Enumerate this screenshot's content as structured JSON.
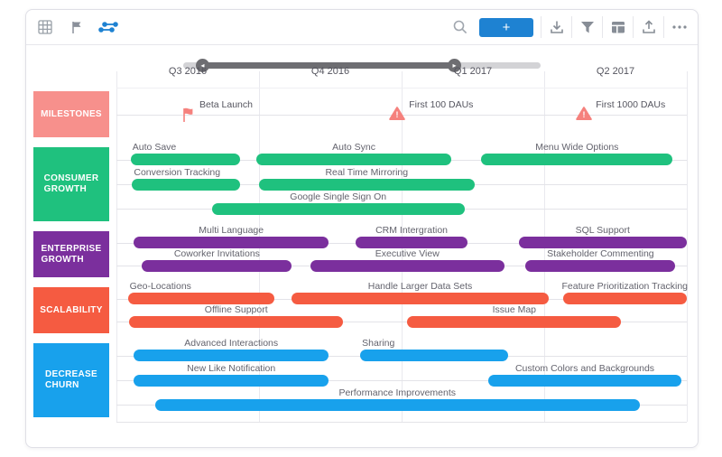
{
  "toolbar": {
    "left_icons": [
      {
        "name": "table-view-icon",
        "active": false
      },
      {
        "name": "milestones-flag-icon",
        "active": false
      },
      {
        "name": "swimlane-view-icon",
        "active": true
      }
    ],
    "search_icon": "search-icon",
    "add_button_label": "+",
    "right_icons": [
      "download-icon",
      "filter-icon",
      "layout-board-icon",
      "upload-icon",
      "more-ellipsis-icon"
    ]
  },
  "colors": {
    "accent_blue": "#1E82D2",
    "icon_gray": "#8A909A",
    "slider_gray": "#6E6E72",
    "milestone_salmon": "#F5817D",
    "lane_milestones": "#F7908C",
    "lane_consumer": "#1FC17E",
    "lane_enterprise": "#7B2F9D",
    "lane_scalability": "#F55B41",
    "lane_churn": "#18A1EC"
  },
  "slider": {
    "left_handle_glyph": "◂",
    "right_handle_glyph": "▸"
  },
  "timeline": {
    "quarters": [
      "Q3 2016",
      "Q4 2016",
      "Q1 2017",
      "Q2 2017"
    ],
    "range_quarters": 4
  },
  "lanes": [
    {
      "id": "milestones",
      "label": "MILESTONES",
      "color": "#F7908C",
      "type": "milestones",
      "milestones": [
        {
          "label": "Beta Launch",
          "t": 0.5,
          "icon": "flag-milestone-icon"
        },
        {
          "label": "First 100 DAUs",
          "t": 1.97,
          "icon": "warning-milestone-icon"
        },
        {
          "label": "First 1000 DAUs",
          "t": 3.28,
          "icon": "warning-milestone-icon"
        }
      ]
    },
    {
      "id": "consumer-growth",
      "label": "CONSUMER\nGROWTH",
      "color": "#1FC17E",
      "type": "bars",
      "rows": [
        [
          {
            "label": "Auto Save",
            "start": 0.1,
            "end": 0.87,
            "align": "left"
          },
          {
            "label": "Auto Sync",
            "start": 0.98,
            "end": 2.35,
            "align": "center"
          },
          {
            "label": "Menu Wide Options",
            "start": 2.56,
            "end": 3.9,
            "align": "center"
          }
        ],
        [
          {
            "label": "Conversion Tracking",
            "start": 0.11,
            "end": 0.87,
            "align": "left"
          },
          {
            "label": "Real Time Mirroring",
            "start": 1.0,
            "end": 2.51,
            "align": "center"
          }
        ],
        [
          {
            "label": "Google Single Sign On",
            "start": 0.67,
            "end": 2.44,
            "align": "center"
          }
        ]
      ]
    },
    {
      "id": "enterprise-growth",
      "label": "ENTERPRISE\nGROWTH",
      "color": "#7B2F9D",
      "type": "bars",
      "rows": [
        [
          {
            "label": "Multi Language",
            "start": 0.12,
            "end": 1.49,
            "align": "center"
          },
          {
            "label": "CRM Intergration",
            "start": 1.68,
            "end": 2.46,
            "align": "center"
          },
          {
            "label": "SQL Support",
            "start": 2.82,
            "end": 4.0,
            "align": "center"
          }
        ],
        [
          {
            "label": "Coworker Invitations",
            "start": 0.18,
            "end": 1.23,
            "align": "center"
          },
          {
            "label": "Executive View",
            "start": 1.36,
            "end": 2.72,
            "align": "center"
          },
          {
            "label": "Stakeholder Commenting",
            "start": 2.87,
            "end": 3.92,
            "align": "center"
          }
        ]
      ]
    },
    {
      "id": "scalability",
      "label": "SCALABILITY",
      "color": "#F55B41",
      "type": "bars",
      "rows": [
        [
          {
            "label": "Geo-Locations",
            "start": 0.08,
            "end": 1.11,
            "align": "left"
          },
          {
            "label": "Handle Larger Data Sets",
            "start": 1.23,
            "end": 3.03,
            "align": "center"
          },
          {
            "label": "Feature Prioritization Tracking",
            "start": 3.13,
            "end": 4.0,
            "align": "center"
          }
        ],
        [
          {
            "label": "Offline Support",
            "start": 0.09,
            "end": 1.59,
            "align": "center"
          },
          {
            "label": "Issue Map",
            "start": 2.04,
            "end": 3.54,
            "align": "center"
          }
        ]
      ]
    },
    {
      "id": "decrease-churn",
      "label": "DECREASE\nCHURN",
      "color": "#18A1EC",
      "type": "bars",
      "rows": [
        [
          {
            "label": "Advanced Interactions",
            "start": 0.12,
            "end": 1.49,
            "align": "center"
          },
          {
            "label": "Sharing",
            "start": 1.71,
            "end": 2.75,
            "align": "left"
          }
        ],
        [
          {
            "label": "New Like Notification",
            "start": 0.12,
            "end": 1.49,
            "align": "center"
          },
          {
            "label": "Custom Colors and Backgrounds",
            "start": 2.61,
            "end": 3.96,
            "align": "center"
          }
        ],
        [
          {
            "label": "Performance Improvements",
            "start": 0.27,
            "end": 3.67,
            "align": "center"
          }
        ]
      ]
    }
  ]
}
